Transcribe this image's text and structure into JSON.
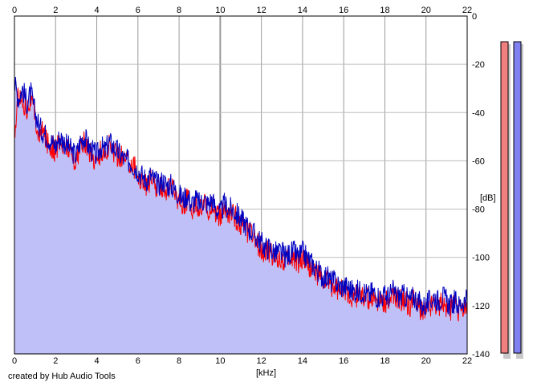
{
  "footer": {
    "credit": "created by Hub Audio Tools"
  },
  "chart_data": {
    "type": "area",
    "xlabel": "[kHz]",
    "ylabel": "[dB]",
    "xlim": [
      0,
      22
    ],
    "ylim": [
      -140,
      0
    ],
    "x_ticks": [
      0,
      2,
      4,
      6,
      8,
      10,
      12,
      14,
      16,
      18,
      20,
      22
    ],
    "y_ticks": [
      0,
      -20,
      -40,
      -60,
      -80,
      -100,
      -120,
      -140
    ],
    "y_tick_labels": [
      "0",
      "-20",
      "-40",
      "-60",
      "-80",
      "-100",
      "-120",
      "-140"
    ],
    "grid": true,
    "fill_color": "#c0c0f8",
    "series": [
      {
        "color": "#ff0000",
        "points": [
          [
            0,
            -50
          ],
          [
            0.2,
            -32
          ],
          [
            0.4,
            -36
          ],
          [
            0.6,
            -38
          ],
          [
            0.8,
            -34
          ],
          [
            1.0,
            -42
          ],
          [
            1.2,
            -50
          ],
          [
            1.4,
            -48
          ],
          [
            1.6,
            -52
          ],
          [
            1.8,
            -54
          ],
          [
            2.0,
            -56
          ],
          [
            2.2,
            -52
          ],
          [
            2.4,
            -55
          ],
          [
            2.6,
            -54
          ],
          [
            2.8,
            -58
          ],
          [
            3.0,
            -60
          ],
          [
            3.2,
            -54
          ],
          [
            3.4,
            -52
          ],
          [
            3.6,
            -56
          ],
          [
            3.8,
            -58
          ],
          [
            4.0,
            -60
          ],
          [
            4.2,
            -56
          ],
          [
            4.4,
            -58
          ],
          [
            4.6,
            -54
          ],
          [
            4.8,
            -56
          ],
          [
            5.0,
            -58
          ],
          [
            5.2,
            -58
          ],
          [
            5.4,
            -60
          ],
          [
            5.6,
            -60
          ],
          [
            5.8,
            -62
          ],
          [
            6.0,
            -66
          ],
          [
            6.2,
            -68
          ],
          [
            6.4,
            -70
          ],
          [
            6.6,
            -68
          ],
          [
            6.8,
            -70
          ],
          [
            7.0,
            -72
          ],
          [
            7.2,
            -70
          ],
          [
            7.4,
            -72
          ],
          [
            7.6,
            -70
          ],
          [
            7.8,
            -74
          ],
          [
            8.0,
            -76
          ],
          [
            8.2,
            -78
          ],
          [
            8.4,
            -76
          ],
          [
            8.6,
            -80
          ],
          [
            8.8,
            -78
          ],
          [
            9.0,
            -80
          ],
          [
            9.2,
            -78
          ],
          [
            9.4,
            -80
          ],
          [
            9.6,
            -78
          ],
          [
            9.8,
            -82
          ],
          [
            10.0,
            -84
          ],
          [
            10.2,
            -80
          ],
          [
            10.4,
            -82
          ],
          [
            10.6,
            -82
          ],
          [
            10.8,
            -84
          ],
          [
            11.0,
            -86
          ],
          [
            11.2,
            -88
          ],
          [
            11.4,
            -90
          ],
          [
            11.6,
            -92
          ],
          [
            11.8,
            -94
          ],
          [
            12.0,
            -96
          ],
          [
            12.2,
            -98
          ],
          [
            12.4,
            -98
          ],
          [
            12.6,
            -100
          ],
          [
            12.8,
            -100
          ],
          [
            13.0,
            -100
          ],
          [
            13.2,
            -102
          ],
          [
            13.4,
            -100
          ],
          [
            13.6,
            -100
          ],
          [
            13.8,
            -102
          ],
          [
            14.0,
            -100
          ],
          [
            14.2,
            -102
          ],
          [
            14.4,
            -104
          ],
          [
            14.6,
            -106
          ],
          [
            14.8,
            -108
          ],
          [
            15.0,
            -110
          ],
          [
            15.2,
            -110
          ],
          [
            15.4,
            -112
          ],
          [
            15.6,
            -112
          ],
          [
            15.8,
            -114
          ],
          [
            16.0,
            -114
          ],
          [
            16.2,
            -114
          ],
          [
            16.4,
            -116
          ],
          [
            16.6,
            -116
          ],
          [
            16.8,
            -116
          ],
          [
            17.0,
            -116
          ],
          [
            17.2,
            -118
          ],
          [
            17.4,
            -116
          ],
          [
            17.6,
            -118
          ],
          [
            17.8,
            -118
          ],
          [
            18.0,
            -118
          ],
          [
            18.2,
            -118
          ],
          [
            18.4,
            -116
          ],
          [
            18.6,
            -118
          ],
          [
            18.8,
            -118
          ],
          [
            19.0,
            -118
          ],
          [
            19.2,
            -120
          ],
          [
            19.4,
            -118
          ],
          [
            19.6,
            -120
          ],
          [
            19.8,
            -122
          ],
          [
            20.0,
            -122
          ],
          [
            20.2,
            -120
          ],
          [
            20.4,
            -118
          ],
          [
            20.6,
            -120
          ],
          [
            20.8,
            -118
          ],
          [
            21.0,
            -120
          ],
          [
            21.2,
            -122
          ],
          [
            21.4,
            -120
          ],
          [
            21.6,
            -122
          ],
          [
            21.8,
            -120
          ],
          [
            22.0,
            -120
          ]
        ]
      },
      {
        "color": "#0000c0",
        "points": [
          [
            0,
            -28
          ],
          [
            0.2,
            -34
          ],
          [
            0.4,
            -30
          ],
          [
            0.6,
            -36
          ],
          [
            0.8,
            -32
          ],
          [
            1.0,
            -40
          ],
          [
            1.2,
            -46
          ],
          [
            1.4,
            -48
          ],
          [
            1.6,
            -50
          ],
          [
            1.8,
            -52
          ],
          [
            2.0,
            -54
          ],
          [
            2.2,
            -50
          ],
          [
            2.4,
            -52
          ],
          [
            2.6,
            -54
          ],
          [
            2.8,
            -56
          ],
          [
            3.0,
            -58
          ],
          [
            3.2,
            -52
          ],
          [
            3.4,
            -50
          ],
          [
            3.6,
            -54
          ],
          [
            3.8,
            -56
          ],
          [
            4.0,
            -58
          ],
          [
            4.2,
            -54
          ],
          [
            4.4,
            -56
          ],
          [
            4.6,
            -52
          ],
          [
            4.8,
            -54
          ],
          [
            5.0,
            -56
          ],
          [
            5.2,
            -58
          ],
          [
            5.4,
            -60
          ],
          [
            5.6,
            -60
          ],
          [
            5.8,
            -62
          ],
          [
            6.0,
            -64
          ],
          [
            6.2,
            -66
          ],
          [
            6.4,
            -68
          ],
          [
            6.6,
            -66
          ],
          [
            6.8,
            -68
          ],
          [
            7.0,
            -70
          ],
          [
            7.2,
            -68
          ],
          [
            7.4,
            -70
          ],
          [
            7.6,
            -70
          ],
          [
            7.8,
            -72
          ],
          [
            8.0,
            -74
          ],
          [
            8.2,
            -76
          ],
          [
            8.4,
            -74
          ],
          [
            8.6,
            -78
          ],
          [
            8.8,
            -76
          ],
          [
            9.0,
            -78
          ],
          [
            9.2,
            -76
          ],
          [
            9.4,
            -78
          ],
          [
            9.6,
            -76
          ],
          [
            9.8,
            -80
          ],
          [
            10.0,
            -82
          ],
          [
            10.2,
            -78
          ],
          [
            10.4,
            -80
          ],
          [
            10.6,
            -80
          ],
          [
            10.8,
            -82
          ],
          [
            11.0,
            -84
          ],
          [
            11.2,
            -86
          ],
          [
            11.4,
            -88
          ],
          [
            11.6,
            -90
          ],
          [
            11.8,
            -92
          ],
          [
            12.0,
            -94
          ],
          [
            12.2,
            -96
          ],
          [
            12.4,
            -96
          ],
          [
            12.6,
            -98
          ],
          [
            12.8,
            -98
          ],
          [
            13.0,
            -98
          ],
          [
            13.2,
            -100
          ],
          [
            13.4,
            -98
          ],
          [
            13.6,
            -98
          ],
          [
            13.8,
            -100
          ],
          [
            14.0,
            -98
          ],
          [
            14.2,
            -100
          ],
          [
            14.4,
            -102
          ],
          [
            14.6,
            -104
          ],
          [
            14.8,
            -106
          ],
          [
            15.0,
            -108
          ],
          [
            15.2,
            -108
          ],
          [
            15.4,
            -110
          ],
          [
            15.6,
            -110
          ],
          [
            15.8,
            -112
          ],
          [
            16.0,
            -112
          ],
          [
            16.2,
            -112
          ],
          [
            16.4,
            -114
          ],
          [
            16.6,
            -114
          ],
          [
            16.8,
            -114
          ],
          [
            17.0,
            -114
          ],
          [
            17.2,
            -116
          ],
          [
            17.4,
            -114
          ],
          [
            17.6,
            -116
          ],
          [
            17.8,
            -116
          ],
          [
            18.0,
            -116
          ],
          [
            18.2,
            -116
          ],
          [
            18.4,
            -114
          ],
          [
            18.6,
            -116
          ],
          [
            18.8,
            -116
          ],
          [
            19.0,
            -116
          ],
          [
            19.2,
            -118
          ],
          [
            19.4,
            -116
          ],
          [
            19.6,
            -118
          ],
          [
            19.8,
            -120
          ],
          [
            20.0,
            -120
          ],
          [
            20.2,
            -118
          ],
          [
            20.4,
            -116
          ],
          [
            20.6,
            -118
          ],
          [
            20.8,
            -116
          ],
          [
            21.0,
            -118
          ],
          [
            21.2,
            -120
          ],
          [
            21.4,
            -118
          ],
          [
            21.6,
            -120
          ],
          [
            21.8,
            -118
          ],
          [
            22.0,
            -118
          ]
        ]
      }
    ]
  },
  "level_meters": [
    {
      "color": "#f08080",
      "value": 0
    },
    {
      "color": "#8080f0",
      "value": 0
    }
  ]
}
